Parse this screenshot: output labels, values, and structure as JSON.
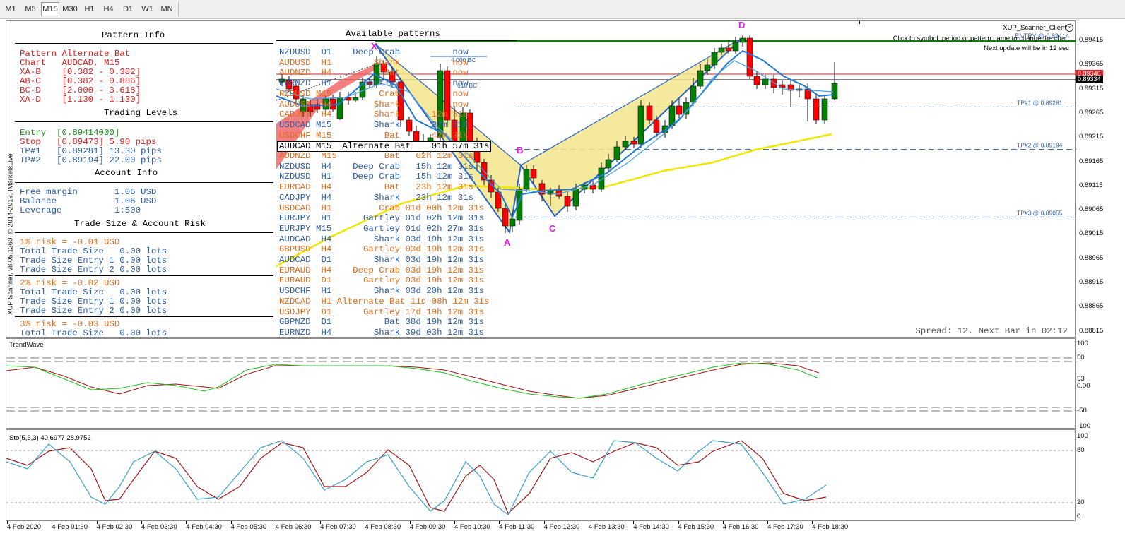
{
  "timeframes": [
    "M1",
    "M5",
    "M15",
    "M30",
    "H1",
    "H4",
    "D1",
    "W1",
    "MN"
  ],
  "active_timeframe": "M15",
  "window": {
    "copyright": "XUP Scanner, v8.05.1260, © 2014-2019, IMarketsLive"
  },
  "top_right": {
    "client": "XUP_Scanner_Client",
    "hint": "Click to symbol, period or pattern name to change the chart",
    "update": "Next update will be in 12 sec",
    "entry_overlay": "ENTRY @ 0.89414"
  },
  "spread_text": "Spread: 12. Next Bar in 02:12",
  "pattern_info": {
    "title": "Pattern Info",
    "lines": [
      "Pattern Alternate Bat",
      "Chart   AUDCAD, M15",
      "XA-B    [0.382 - 0.382]",
      "AB-C    [0.382 - 0.886]",
      "BC-D    [2.000 - 3.618]",
      "XA-D    [1.130 - 1.130]"
    ]
  },
  "trading_levels": {
    "title": "Trading Levels",
    "entry": "Entry  [0.89414000]",
    "stop": "Stop   [0.89473] 5.90 pips",
    "tp1": "TP#1   [0.89281] 13.30 pips",
    "tp2": "TP#2   [0.89194] 22.00 pips"
  },
  "account_info": {
    "title": "Account Info",
    "lines": [
      "Free margin       1.06 USD",
      "Balance           1.06 USD",
      "Leverage          1:500"
    ]
  },
  "trade_size": {
    "title": "Trade Size & Account Risk",
    "groups": [
      {
        "risk": "1% risk = -0.01 USD",
        "lines": [
          "Total Trade Size   0.00 lots",
          "Trade Size Entry 1 0.00 lots",
          "Trade Size Entry 2 0.00 lots"
        ]
      },
      {
        "risk": "2% risk = -0.02 USD",
        "lines": [
          "Total Trade Size   0.00 lots",
          "Trade Size Entry 1 0.00 lots",
          "Trade Size Entry 2 0.00 lots"
        ]
      },
      {
        "risk": "3% risk = -0.03 USD",
        "lines": [
          "Total Trade Size   0.00 lots"
        ]
      }
    ]
  },
  "available_patterns": {
    "title": "Available patterns",
    "rows": [
      {
        "text": "NZDUSD  D1    Deep Crab          now",
        "color": "blue"
      },
      {
        "text": "AUDUSD  H1        Shark          now",
        "color": "orange"
      },
      {
        "text": "AUDNZD  H4          Bat          now",
        "color": "orange"
      },
      {
        "text": "EURNZD  H1      Gartley          now",
        "color": "blue"
      },
      {
        "text": "NZDUSD M15         Crab          now",
        "color": "orange"
      },
      {
        "text": "AUDUSD  H4        Shark          now",
        "color": "orange"
      },
      {
        "text": "CADJPY  H4        Shark      12m 31s",
        "color": "orange"
      },
      {
        "text": "USDCAD M15        Shark      27m 31s",
        "color": "blue"
      },
      {
        "text": "USDCHF M15          Bat      42m 31s",
        "color": "orange"
      },
      {
        "text": "AUDCAD M15  Alternate Bat    01h 57m 31s",
        "color": "selected"
      },
      {
        "text": "AUDNZD  M15         Bat   02h 12m 31s",
        "color": "orange"
      },
      {
        "text": "NZDUSD  H4    Deep Crab   15h 12m 31s",
        "color": "blue"
      },
      {
        "text": "NZDUSD  H1    Deep Crab   15h 12m 31s",
        "color": "blue"
      },
      {
        "text": "EURCAD  H4          Bat   23h 12m 31s",
        "color": "orange"
      },
      {
        "text": "CADJPY  H4        Shark   23h 12m 31s",
        "color": "blue"
      },
      {
        "text": "USDCAD  H1         Crab 01d 00h 12m 31s",
        "color": "orange"
      },
      {
        "text": "EURJPY  H1      Gartley 01d 02h 12m 31s",
        "color": "blue"
      },
      {
        "text": "EURJPY M15      Gartley 01d 02h 27m 31s",
        "color": "blue"
      },
      {
        "text": "AUDCAD  H4        Shark 03d 19h 12m 31s",
        "color": "blue"
      },
      {
        "text": "GBPUSD  H4      Gartley 03d 19h 12m 31s",
        "color": "orange"
      },
      {
        "text": "AUDCAD  D1        Shark 03d 19h 12m 31s",
        "color": "blue"
      },
      {
        "text": "EURAUD  H4    Deep Crab 03d 19h 12m 31s",
        "color": "orange"
      },
      {
        "text": "EURAUD  D1      Gartley 03d 19h 12m 31s",
        "color": "orange"
      },
      {
        "text": "USDCHF  H1        Shark 03d 20h 12m 31s",
        "color": "blue"
      },
      {
        "text": "NZDCAD  H1 Alternate Bat 11d 08h 12m 31s",
        "color": "orange"
      },
      {
        "text": "USDJPY  D1      Gartley 17d 19h 12m 31s",
        "color": "orange"
      },
      {
        "text": "GBPNZD  D1          Bat 38d 19h 12m 31s",
        "color": "blue"
      },
      {
        "text": "EURNZD  H4        Shark 39d 03h 12m 31s",
        "color": "blue"
      }
    ]
  },
  "chart_labels": {
    "x_point": "X",
    "a_point": "A",
    "b_point": "B",
    "c_point": "C",
    "d_point": "D",
    "bc_400": "4.000 BC",
    "bc_618": "618 BC",
    "tp1": "TP#1 @ 0.89281",
    "tp2": "TP#2 @ 0.89194",
    "tp3": "TP#3 @ 0.89055"
  },
  "price_axis": [
    "0.89415",
    "0.89365",
    "0.89315",
    "0.89265",
    "0.89215",
    "0.89165",
    "0.89115",
    "0.89065",
    "0.89015",
    "0.88965",
    "0.88915",
    "0.88865",
    "0.88815"
  ],
  "price_tags": {
    "red": "0.89346",
    "black": "0.89334"
  },
  "time_axis": [
    "4 Feb 2020",
    "4 Feb 01:30",
    "4 Feb 02:30",
    "4 Feb 03:30",
    "4 Feb 04:30",
    "4 Feb 05:30",
    "4 Feb 06:30",
    "4 Feb 07:30",
    "4 Feb 08:30",
    "4 Feb 09:30",
    "4 Feb 10:30",
    "4 Feb 11:30",
    "4 Feb 12:30",
    "4 Feb 13:30",
    "4 Feb 14:30",
    "4 Feb 15:30",
    "4 Feb 16:30",
    "4 Feb 17:30",
    "4 Feb 18:30"
  ],
  "trendwave": {
    "label": "TrendWave",
    "axis": [
      "100",
      "50",
      "0.00",
      "-50",
      "-100"
    ],
    "mid": "53"
  },
  "stochastic": {
    "label": "Sto(5,3,3) 40.6977 28.9752",
    "axis": [
      "100",
      "80",
      "20",
      "0"
    ]
  },
  "colors": {
    "bull": "#008000",
    "bear": "#ff0000",
    "ma_blue": "#1e78d7",
    "ma_yellow": "#f0e600",
    "panel_orange": "#e06a1a",
    "panel_blue": "#2a5caa",
    "label_magenta": "#e020e0"
  }
}
